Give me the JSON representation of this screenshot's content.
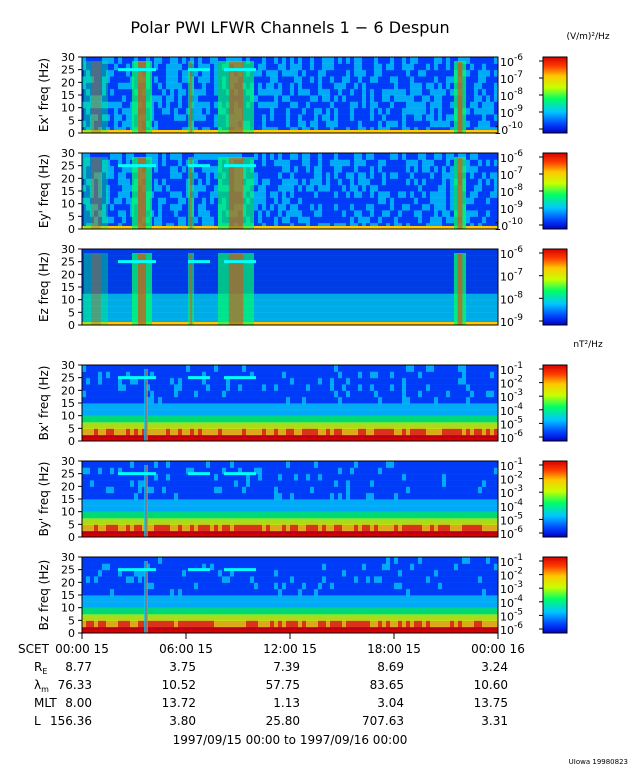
{
  "title": "Polar PWI LFWR Channels 1 − 6 Despun",
  "colors": {
    "background": "#ffffff",
    "text": "#000000",
    "cmap": [
      "#0000c8",
      "#0046ff",
      "#00c8ff",
      "#00ff64",
      "#c8ff00",
      "#ffc800",
      "#ff3c00",
      "#d70000"
    ]
  },
  "chart_data": [
    {
      "type": "heatmap",
      "panel": "Ex'",
      "ylabel": "Ex' freq (Hz)",
      "ylim": [
        0,
        30
      ],
      "yticks": [
        "0",
        "5",
        "10",
        "15",
        "20",
        "25",
        "30"
      ],
      "colorbar_unit": "(V/m)²/Hz",
      "colorbar_ticks": [
        {
          "base": "10",
          "exp": "-6"
        },
        {
          "base": "10",
          "exp": "-7"
        },
        {
          "base": "10",
          "exp": "-8"
        },
        {
          "base": "10",
          "exp": "-9"
        },
        {
          "base": "10",
          "exp": "-10"
        }
      ]
    },
    {
      "type": "heatmap",
      "panel": "Ey'",
      "ylabel": "Ey' freq (Hz)",
      "ylim": [
        0,
        30
      ],
      "yticks": [
        "0",
        "5",
        "10",
        "15",
        "20",
        "25",
        "30"
      ],
      "colorbar_unit": "",
      "colorbar_ticks": [
        {
          "base": "10",
          "exp": "-6"
        },
        {
          "base": "10",
          "exp": "-7"
        },
        {
          "base": "10",
          "exp": "-8"
        },
        {
          "base": "10",
          "exp": "-9"
        },
        {
          "base": "10",
          "exp": "-10"
        }
      ]
    },
    {
      "type": "heatmap",
      "panel": "Ez",
      "ylabel": "Ez freq (Hz)",
      "ylim": [
        0,
        30
      ],
      "yticks": [
        "0",
        "5",
        "10",
        "15",
        "20",
        "25",
        "30"
      ],
      "colorbar_unit": "",
      "colorbar_ticks": [
        {
          "base": "10",
          "exp": "-6"
        },
        {
          "base": "10",
          "exp": "-7"
        },
        {
          "base": "10",
          "exp": "-8"
        },
        {
          "base": "10",
          "exp": "-9"
        }
      ]
    },
    {
      "type": "heatmap",
      "panel": "Bx'",
      "ylabel": "Bx' freq (Hz)",
      "ylim": [
        0,
        30
      ],
      "yticks": [
        "0",
        "5",
        "10",
        "15",
        "20",
        "25",
        "30"
      ],
      "colorbar_unit": "nT²/Hz",
      "colorbar_ticks": [
        {
          "base": "10",
          "exp": "-1"
        },
        {
          "base": "10",
          "exp": "-2"
        },
        {
          "base": "10",
          "exp": "-3"
        },
        {
          "base": "10",
          "exp": "-4"
        },
        {
          "base": "10",
          "exp": "-5"
        },
        {
          "base": "10",
          "exp": "-6"
        }
      ]
    },
    {
      "type": "heatmap",
      "panel": "By'",
      "ylabel": "By' freq (Hz)",
      "ylim": [
        0,
        30
      ],
      "yticks": [
        "0",
        "5",
        "10",
        "15",
        "20",
        "25",
        "30"
      ],
      "colorbar_unit": "",
      "colorbar_ticks": [
        {
          "base": "10",
          "exp": "-1"
        },
        {
          "base": "10",
          "exp": "-2"
        },
        {
          "base": "10",
          "exp": "-3"
        },
        {
          "base": "10",
          "exp": "-4"
        },
        {
          "base": "10",
          "exp": "-5"
        },
        {
          "base": "10",
          "exp": "-6"
        }
      ]
    },
    {
      "type": "heatmap",
      "panel": "Bz",
      "ylabel": "Bz freq (Hz)",
      "ylim": [
        0,
        30
      ],
      "yticks": [
        "0",
        "5",
        "10",
        "15",
        "20",
        "25",
        "30"
      ],
      "colorbar_unit": "",
      "colorbar_ticks": [
        {
          "base": "10",
          "exp": "-1"
        },
        {
          "base": "10",
          "exp": "-2"
        },
        {
          "base": "10",
          "exp": "-3"
        },
        {
          "base": "10",
          "exp": "-4"
        },
        {
          "base": "10",
          "exp": "-5"
        },
        {
          "base": "10",
          "exp": "-6"
        }
      ]
    }
  ],
  "xaxis": {
    "ticks": [
      "00:00 15",
      "06:00 15",
      "12:00 15",
      "18:00 15",
      "00:00 16"
    ],
    "rows": [
      {
        "label": "SCET",
        "values": []
      },
      {
        "label": "R",
        "sub": "E",
        "values": [
          "8.77",
          "3.75",
          "7.39",
          "8.69",
          "3.24"
        ]
      },
      {
        "label": "λ",
        "sub": "m",
        "values": [
          "76.33",
          "10.52",
          "57.75",
          "83.65",
          "10.60"
        ]
      },
      {
        "label": "MLT",
        "values": [
          "8.00",
          "13.72",
          "1.13",
          "3.04",
          "13.75"
        ]
      },
      {
        "label": "L",
        "values": [
          "156.36",
          "3.80",
          "25.80",
          "707.63",
          "3.31"
        ]
      }
    ],
    "range": "1997/09/15 00:00 to 1997/09/16 00:00"
  },
  "footer": "UIowa 19980823"
}
